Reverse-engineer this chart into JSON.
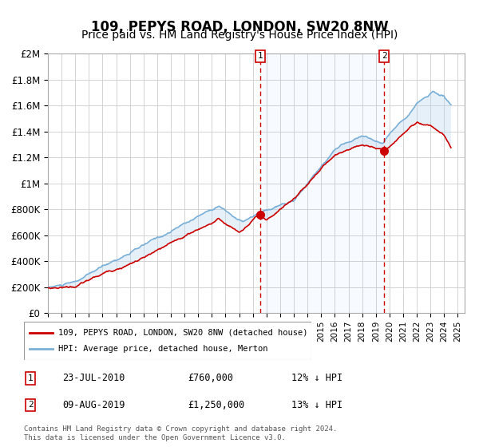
{
  "title": "109, PEPYS ROAD, LONDON, SW20 8NW",
  "subtitle": "Price paid vs. HM Land Registry's House Price Index (HPI)",
  "xlabel": "",
  "ylabel": "",
  "ylim": [
    0,
    2000000
  ],
  "yticks": [
    0,
    200000,
    400000,
    600000,
    800000,
    1000000,
    1200000,
    1400000,
    1600000,
    1800000,
    2000000
  ],
  "ytick_labels": [
    "£0",
    "£200K",
    "£400K",
    "£600K",
    "£800K",
    "£1M",
    "£1.2M",
    "£1.4M",
    "£1.6M",
    "£1.8M",
    "£2M"
  ],
  "sale1_x": 2010.56,
  "sale1_y": 760000,
  "sale1_label": "1",
  "sale2_x": 2019.6,
  "sale2_y": 1250000,
  "sale2_label": "2",
  "hpi_color": "#aec6e8",
  "price_color": "#cc0000",
  "sale_marker_color": "#cc0000",
  "vline_color": "#cc0000",
  "shade_color": "#ddeeff",
  "legend_label_price": "109, PEPYS ROAD, LONDON, SW20 8NW (detached house)",
  "legend_label_hpi": "HPI: Average price, detached house, Merton",
  "note1_label": "1",
  "note1_date": "23-JUL-2010",
  "note1_price": "£760,000",
  "note1_pct": "12% ↓ HPI",
  "note2_label": "2",
  "note2_date": "09-AUG-2019",
  "note2_price": "£1,250,000",
  "note2_pct": "13% ↓ HPI",
  "footer": "Contains HM Land Registry data © Crown copyright and database right 2024.\nThis data is licensed under the Open Government Licence v3.0.",
  "xlim_start": 1995.0,
  "xlim_end": 2025.5,
  "title_fontsize": 12,
  "subtitle_fontsize": 10
}
